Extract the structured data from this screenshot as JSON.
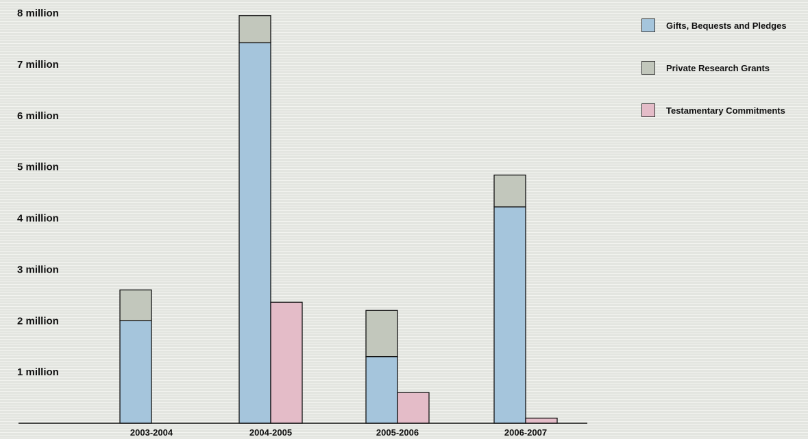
{
  "chart_data": {
    "type": "bar",
    "title": "",
    "xlabel": "",
    "ylabel": "",
    "categories": [
      "2003-2004",
      "2004-2005",
      "2005-2006",
      "2006-2007"
    ],
    "ylim": [
      0,
      8000000
    ],
    "yticks": [
      {
        "value": 1000000,
        "label": "1 million"
      },
      {
        "value": 2000000,
        "label": "2 million"
      },
      {
        "value": 3000000,
        "label": "3 million"
      },
      {
        "value": 4000000,
        "label": "4 million"
      },
      {
        "value": 5000000,
        "label": "5 million"
      },
      {
        "value": 6000000,
        "label": "6 million"
      },
      {
        "value": 7000000,
        "label": "7 million"
      },
      {
        "value": 8000000,
        "label": "8 million"
      }
    ],
    "series": [
      {
        "name": "Gifts, Bequests and Pledges",
        "color": "#a5c5dc",
        "stack": "A",
        "values": [
          2000000,
          7420000,
          1300000,
          4220000
        ]
      },
      {
        "name": "Private Research Grants",
        "color": "#c2c7bc",
        "stack": "A",
        "values": [
          600000,
          530000,
          900000,
          620000
        ]
      },
      {
        "name": "Testamentary Commitments",
        "color": "#e4bcc8",
        "stack": "B",
        "values": [
          0,
          2360000,
          600000,
          100000
        ]
      }
    ],
    "legend_position": "top-right",
    "grid": false
  }
}
